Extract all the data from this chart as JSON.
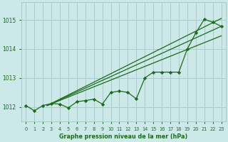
{
  "title": "Graphe pression niveau de la mer (hPa)",
  "background_color": "#cce8e8",
  "grid_color": "#aacccc",
  "line_color": "#1a6b1a",
  "xlim": [
    -0.5,
    23.5
  ],
  "ylim": [
    1011.5,
    1015.6
  ],
  "xticks": [
    0,
    1,
    2,
    3,
    4,
    5,
    6,
    7,
    8,
    9,
    10,
    11,
    12,
    13,
    14,
    15,
    16,
    17,
    18,
    19,
    20,
    21,
    22,
    23
  ],
  "yticks": [
    1012,
    1013,
    1014,
    1015
  ],
  "data_line": [
    1012.05,
    1011.87,
    1012.05,
    1012.12,
    1012.1,
    1011.97,
    1012.18,
    1012.22,
    1012.27,
    1012.1,
    1012.5,
    1012.55,
    1012.5,
    1012.28,
    1013.0,
    1013.2,
    1013.2,
    1013.2,
    1013.2,
    1014.0,
    1014.55,
    1015.02,
    1014.92,
    1014.78
  ],
  "trend_lines": [
    {
      "x0": 2.5,
      "y0": 1012.05,
      "x1": 23,
      "y1": 1015.05
    },
    {
      "x0": 2.5,
      "y0": 1012.05,
      "x1": 23,
      "y1": 1014.78
    },
    {
      "x0": 2.5,
      "y0": 1012.05,
      "x1": 23,
      "y1": 1014.45
    }
  ]
}
